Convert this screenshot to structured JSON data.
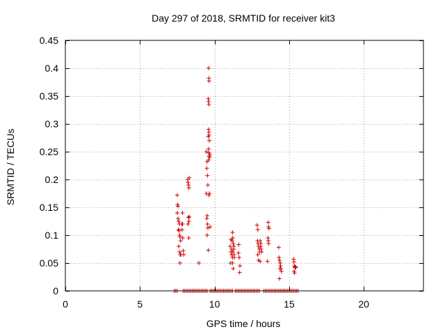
{
  "chart_data": {
    "type": "scatter",
    "title": "Day 297 of 2018, SRMTID for receiver kit3",
    "xlabel": "GPS time / hours",
    "ylabel": "SRMTID / TECUs",
    "xlim": [
      0,
      24
    ],
    "ylim": [
      0,
      0.45
    ],
    "xticks": [
      0,
      5,
      10,
      15,
      20
    ],
    "yticks": [
      0,
      0.05,
      0.1,
      0.15,
      0.2,
      0.25,
      0.3,
      0.35,
      0.4,
      0.45
    ],
    "xtick_labels": [
      "0",
      "5",
      "10",
      "15",
      "20"
    ],
    "ytick_labels": [
      "0",
      "0.05",
      "0.1",
      "0.15",
      "0.2",
      "0.25",
      "0.3",
      "0.35",
      "0.4",
      "0.45"
    ],
    "grid": true,
    "legend": "none",
    "marker_color": "#cc0000",
    "series": [
      {
        "marker": "plus",
        "points": [
          [
            7.5,
            0.172
          ],
          [
            7.52,
            0.155
          ],
          [
            7.55,
            0.152
          ],
          [
            7.5,
            0.14
          ],
          [
            7.55,
            0.13
          ],
          [
            7.6,
            0.125
          ],
          [
            7.65,
            0.12
          ],
          [
            7.58,
            0.11
          ],
          [
            7.62,
            0.108
          ],
          [
            7.66,
            0.1
          ],
          [
            7.68,
            0.097
          ],
          [
            7.72,
            0.09
          ],
          [
            7.6,
            0.08
          ],
          [
            7.65,
            0.07
          ],
          [
            7.7,
            0.065
          ],
          [
            7.75,
            0.065
          ],
          [
            7.68,
            0.05
          ],
          [
            7.8,
            0.12
          ],
          [
            7.82,
            0.11
          ],
          [
            7.85,
            0.14
          ],
          [
            7.87,
            0.095
          ],
          [
            7.9,
            0.072
          ],
          [
            7.93,
            0.065
          ],
          [
            7.85,
            0.12
          ],
          [
            8.2,
            0.2
          ],
          [
            8.22,
            0.195
          ],
          [
            8.25,
            0.19
          ],
          [
            8.28,
            0.185
          ],
          [
            8.3,
            0.203
          ],
          [
            8.25,
            0.132
          ],
          [
            8.28,
            0.125
          ],
          [
            8.22,
            0.12
          ],
          [
            8.3,
            0.133
          ],
          [
            8.27,
            0.095
          ],
          [
            8.95,
            0.05
          ],
          [
            9.45,
            0.25
          ],
          [
            9.5,
            0.232
          ],
          [
            9.48,
            0.22
          ],
          [
            9.52,
            0.207
          ],
          [
            9.45,
            0.175
          ],
          [
            9.55,
            0.19
          ],
          [
            9.5,
            0.135
          ],
          [
            9.48,
            0.13
          ],
          [
            9.52,
            0.12
          ],
          [
            9.55,
            0.113
          ],
          [
            9.5,
            0.1
          ],
          [
            9.58,
            0.073
          ],
          [
            9.62,
            0.172
          ],
          [
            9.6,
            0.4
          ],
          [
            9.62,
            0.382
          ],
          [
            9.63,
            0.377
          ],
          [
            9.58,
            0.345
          ],
          [
            9.6,
            0.34
          ],
          [
            9.62,
            0.335
          ],
          [
            9.6,
            0.29
          ],
          [
            9.62,
            0.285
          ],
          [
            9.63,
            0.28
          ],
          [
            9.58,
            0.277
          ],
          [
            9.65,
            0.27
          ],
          [
            9.6,
            0.255
          ],
          [
            9.62,
            0.248
          ],
          [
            9.64,
            0.242
          ],
          [
            9.66,
            0.24
          ],
          [
            9.6,
            0.235
          ],
          [
            9.68,
            0.245
          ],
          [
            9.65,
            0.175
          ],
          [
            9.7,
            0.115
          ],
          [
            11.05,
            0.08
          ],
          [
            11.1,
            0.07
          ],
          [
            11.15,
            0.065
          ],
          [
            11.2,
            0.06
          ],
          [
            11.08,
            0.05
          ],
          [
            11.2,
            0.105
          ],
          [
            11.22,
            0.095
          ],
          [
            11.18,
            0.09
          ],
          [
            11.25,
            0.085
          ],
          [
            11.28,
            0.075
          ],
          [
            11.3,
            0.065
          ],
          [
            11.22,
            0.07
          ],
          [
            11.15,
            0.075
          ],
          [
            11.1,
            0.092
          ],
          [
            11.32,
            0.06
          ],
          [
            11.2,
            0.05
          ],
          [
            11.25,
            0.04
          ],
          [
            11.3,
            0.08
          ],
          [
            11.6,
            0.068
          ],
          [
            11.65,
            0.06
          ],
          [
            11.7,
            0.045
          ],
          [
            11.68,
            0.033
          ],
          [
            11.62,
            0.083
          ],
          [
            12.85,
            0.118
          ],
          [
            12.9,
            0.11
          ],
          [
            12.88,
            0.09
          ],
          [
            12.92,
            0.085
          ],
          [
            12.95,
            0.08
          ],
          [
            13.0,
            0.075
          ],
          [
            13.02,
            0.07
          ],
          [
            12.9,
            0.065
          ],
          [
            12.95,
            0.055
          ],
          [
            13.05,
            0.053
          ],
          [
            13.08,
            0.08
          ],
          [
            13.1,
            0.085
          ],
          [
            13.05,
            0.09
          ],
          [
            13.12,
            0.075
          ],
          [
            13.15,
            0.07
          ],
          [
            13.6,
            0.123
          ],
          [
            13.62,
            0.115
          ],
          [
            13.65,
            0.112
          ],
          [
            13.58,
            0.095
          ],
          [
            13.6,
            0.09
          ],
          [
            13.62,
            0.085
          ],
          [
            13.55,
            0.053
          ],
          [
            14.3,
            0.078
          ],
          [
            14.32,
            0.06
          ],
          [
            14.35,
            0.055
          ],
          [
            14.4,
            0.05
          ],
          [
            14.42,
            0.045
          ],
          [
            14.38,
            0.04
          ],
          [
            14.35,
            0.022
          ],
          [
            14.45,
            0.04
          ],
          [
            14.48,
            0.035
          ],
          [
            15.3,
            0.057
          ],
          [
            15.32,
            0.052
          ],
          [
            15.35,
            0.045
          ],
          [
            15.38,
            0.043
          ],
          [
            15.4,
            0.042
          ],
          [
            15.33,
            0.035
          ],
          [
            15.36,
            0.032
          ],
          [
            15.42,
            0.043
          ],
          [
            15.45,
            0.042
          ]
        ]
      },
      {
        "marker": "plus",
        "points": [
          [
            7.3,
            0
          ],
          [
            7.4,
            0
          ],
          [
            7.5,
            0
          ],
          [
            7.9,
            0
          ],
          [
            8.0,
            0
          ],
          [
            8.1,
            0
          ],
          [
            8.2,
            0
          ],
          [
            8.3,
            0
          ],
          [
            8.4,
            0
          ],
          [
            8.5,
            0
          ],
          [
            8.6,
            0
          ],
          [
            8.7,
            0
          ],
          [
            8.8,
            0
          ],
          [
            8.9,
            0
          ],
          [
            9.0,
            0
          ],
          [
            9.1,
            0
          ],
          [
            9.2,
            0
          ],
          [
            9.3,
            0
          ],
          [
            9.4,
            0
          ],
          [
            9.5,
            0
          ],
          [
            9.7,
            0
          ],
          [
            9.8,
            0
          ],
          [
            9.9,
            0
          ],
          [
            10.0,
            0
          ],
          [
            10.1,
            0
          ],
          [
            10.2,
            0
          ],
          [
            10.3,
            0
          ],
          [
            10.4,
            0
          ],
          [
            10.5,
            0
          ],
          [
            10.6,
            0
          ],
          [
            10.7,
            0
          ],
          [
            10.8,
            0
          ],
          [
            10.9,
            0
          ],
          [
            11.0,
            0
          ],
          [
            11.1,
            0
          ],
          [
            11.2,
            0
          ],
          [
            11.4,
            0
          ],
          [
            11.5,
            0
          ],
          [
            11.6,
            0
          ],
          [
            11.7,
            0
          ],
          [
            11.8,
            0
          ],
          [
            11.9,
            0
          ],
          [
            12.0,
            0
          ],
          [
            12.1,
            0
          ],
          [
            12.2,
            0
          ],
          [
            12.3,
            0
          ],
          [
            12.4,
            0
          ],
          [
            12.5,
            0
          ],
          [
            12.6,
            0
          ],
          [
            12.7,
            0
          ],
          [
            12.8,
            0
          ],
          [
            12.9,
            0
          ],
          [
            13.0,
            0
          ],
          [
            13.3,
            0
          ],
          [
            13.4,
            0
          ],
          [
            13.5,
            0
          ],
          [
            13.6,
            0
          ],
          [
            13.7,
            0
          ],
          [
            13.8,
            0
          ],
          [
            13.9,
            0
          ],
          [
            14.0,
            0
          ],
          [
            14.1,
            0
          ],
          [
            14.2,
            0
          ],
          [
            14.3,
            0
          ],
          [
            14.4,
            0
          ],
          [
            14.5,
            0
          ],
          [
            14.6,
            0
          ],
          [
            14.7,
            0
          ],
          [
            14.8,
            0
          ],
          [
            14.9,
            0
          ],
          [
            15.0,
            0
          ],
          [
            15.1,
            0
          ],
          [
            15.2,
            0
          ],
          [
            15.3,
            0
          ],
          [
            15.4,
            0
          ],
          [
            15.5,
            0
          ],
          [
            15.6,
            0
          ]
        ]
      }
    ]
  }
}
